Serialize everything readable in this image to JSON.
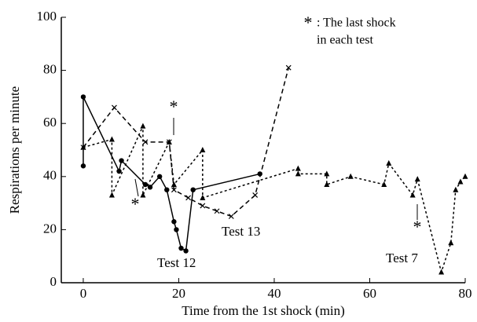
{
  "chart_data": {
    "type": "line",
    "xlabel": "Time from the 1st shock (min)",
    "ylabel": "Respirations per minute",
    "xlim": [
      -4.6,
      80
    ],
    "xticks": [
      0,
      20,
      40,
      60,
      80
    ],
    "ylim": [
      0,
      100
    ],
    "yticks": [
      0,
      20,
      40,
      60,
      80,
      100
    ],
    "annotations": [
      {
        "text": "*"
      },
      {
        "text": ": The last shock"
      },
      {
        "text": "in each test"
      },
      {
        "text": "*"
      },
      {
        "text": "*"
      },
      {
        "text": "*"
      }
    ],
    "series": [
      {
        "name": "Test 12",
        "color": "#000000",
        "marker": "circle",
        "dash": "none",
        "x": [
          0,
          0,
          7.5,
          8,
          13,
          14,
          16,
          17.5,
          19,
          19.5,
          20.5,
          21.5,
          23,
          37
        ],
        "values": [
          44,
          70,
          42,
          46,
          37,
          36,
          40,
          35,
          23,
          20,
          13,
          12,
          35,
          41
        ]
      },
      {
        "name": "Test 13",
        "color": "#000000",
        "marker": "x",
        "dash": "6,4",
        "x": [
          0,
          6.5,
          13,
          18,
          19,
          22,
          25,
          28,
          31,
          36,
          43
        ],
        "values": [
          51,
          66,
          53,
          53,
          35,
          32,
          29,
          27,
          25,
          33,
          81
        ]
      },
      {
        "name": "Test 7",
        "color": "#000000",
        "marker": "triangle",
        "dash": "3,3",
        "x": [
          0,
          6,
          6,
          12.5,
          12.5,
          18,
          19,
          25,
          25,
          45,
          45,
          51,
          51,
          56,
          63,
          64,
          69,
          70,
          75,
          77,
          78,
          79,
          80
        ],
        "values": [
          51,
          54,
          33,
          59,
          33,
          53,
          37,
          50,
          32,
          43,
          41,
          41,
          37,
          40,
          37,
          45,
          33,
          39,
          4,
          15,
          35,
          38,
          40
        ]
      }
    ]
  }
}
